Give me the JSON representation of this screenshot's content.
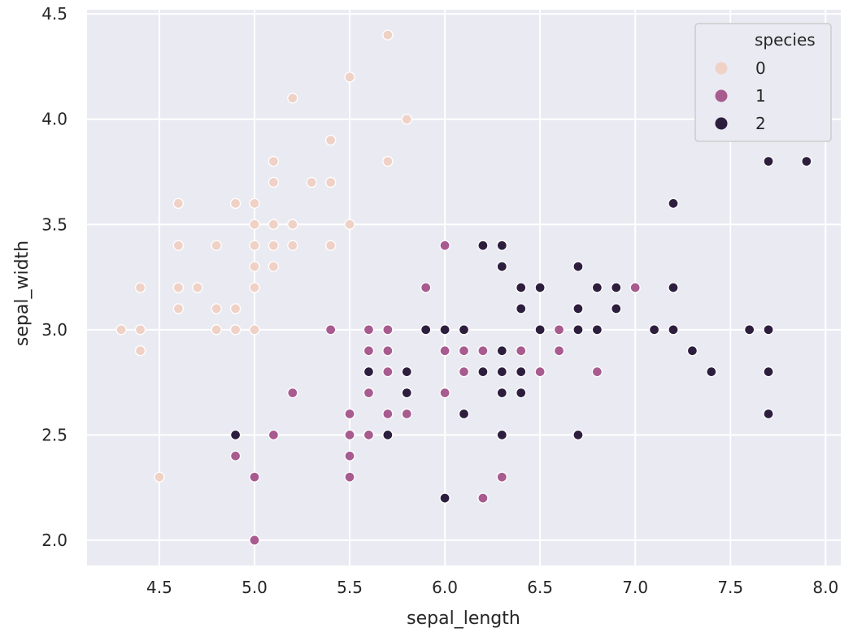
{
  "chart_data": {
    "type": "scatter",
    "xlabel": "sepal_length",
    "ylabel": "sepal_width",
    "xlim": [
      4.12,
      8.08
    ],
    "ylim": [
      1.88,
      4.52
    ],
    "xticks": [
      "4.5",
      "5.0",
      "5.5",
      "6.0",
      "6.5",
      "7.0",
      "7.5",
      "8.0"
    ],
    "yticks": [
      "2.0",
      "2.5",
      "3.0",
      "3.5",
      "4.0",
      "4.5"
    ],
    "grid": true,
    "legend": {
      "title": "species",
      "position": "top-right",
      "entries": [
        "0",
        "1",
        "2"
      ]
    },
    "colors": {
      "background": "#eaeaf2",
      "0": "#efd1c6",
      "1": "#a85b8f",
      "2": "#2d1e3e",
      "marker_edge": "#ffffff"
    },
    "series": [
      {
        "name": "0",
        "points": [
          [
            4.3,
            3.0
          ],
          [
            4.4,
            3.2
          ],
          [
            4.4,
            3.0
          ],
          [
            4.4,
            2.9
          ],
          [
            4.5,
            2.3
          ],
          [
            4.6,
            3.6
          ],
          [
            4.6,
            3.4
          ],
          [
            4.6,
            3.2
          ],
          [
            4.6,
            3.1
          ],
          [
            4.7,
            3.2
          ],
          [
            4.8,
            3.4
          ],
          [
            4.8,
            3.1
          ],
          [
            4.8,
            3.0
          ],
          [
            4.9,
            3.6
          ],
          [
            4.9,
            3.1
          ],
          [
            4.9,
            3.0
          ],
          [
            5.0,
            3.6
          ],
          [
            5.0,
            3.5
          ],
          [
            5.0,
            3.4
          ],
          [
            5.0,
            3.3
          ],
          [
            5.0,
            3.2
          ],
          [
            5.0,
            3.0
          ],
          [
            5.1,
            3.8
          ],
          [
            5.1,
            3.7
          ],
          [
            5.1,
            3.5
          ],
          [
            5.1,
            3.4
          ],
          [
            5.1,
            3.3
          ],
          [
            5.2,
            4.1
          ],
          [
            5.2,
            3.5
          ],
          [
            5.2,
            3.4
          ],
          [
            5.3,
            3.7
          ],
          [
            5.4,
            3.9
          ],
          [
            5.4,
            3.7
          ],
          [
            5.4,
            3.4
          ],
          [
            5.5,
            4.2
          ],
          [
            5.5,
            3.5
          ],
          [
            5.7,
            4.4
          ],
          [
            5.7,
            3.8
          ],
          [
            5.8,
            4.0
          ]
        ]
      },
      {
        "name": "1",
        "points": [
          [
            4.9,
            2.4
          ],
          [
            5.0,
            2.3
          ],
          [
            5.0,
            2.0
          ],
          [
            5.1,
            2.5
          ],
          [
            5.2,
            2.7
          ],
          [
            5.4,
            3.0
          ],
          [
            5.5,
            2.6
          ],
          [
            5.5,
            2.5
          ],
          [
            5.5,
            2.4
          ],
          [
            5.5,
            2.3
          ],
          [
            5.6,
            3.0
          ],
          [
            5.6,
            2.9
          ],
          [
            5.6,
            2.7
          ],
          [
            5.6,
            2.5
          ],
          [
            5.7,
            3.0
          ],
          [
            5.7,
            2.9
          ],
          [
            5.7,
            2.8
          ],
          [
            5.7,
            2.6
          ],
          [
            5.8,
            2.7
          ],
          [
            5.8,
            2.6
          ],
          [
            5.9,
            3.2
          ],
          [
            5.9,
            3.0
          ],
          [
            6.0,
            3.4
          ],
          [
            6.0,
            2.9
          ],
          [
            6.0,
            2.7
          ],
          [
            6.0,
            2.2
          ],
          [
            6.1,
            3.0
          ],
          [
            6.1,
            2.9
          ],
          [
            6.1,
            2.8
          ],
          [
            6.2,
            2.9
          ],
          [
            6.2,
            2.2
          ],
          [
            6.3,
            3.3
          ],
          [
            6.3,
            2.5
          ],
          [
            6.3,
            2.3
          ],
          [
            6.4,
            3.2
          ],
          [
            6.4,
            2.9
          ],
          [
            6.5,
            2.8
          ],
          [
            6.6,
            3.0
          ],
          [
            6.6,
            2.9
          ],
          [
            6.7,
            3.1
          ],
          [
            6.7,
            3.0
          ],
          [
            6.8,
            2.8
          ],
          [
            6.9,
            3.1
          ],
          [
            7.0,
            3.2
          ]
        ]
      },
      {
        "name": "2",
        "points": [
          [
            4.9,
            2.5
          ],
          [
            5.6,
            2.8
          ],
          [
            5.7,
            2.5
          ],
          [
            5.8,
            2.8
          ],
          [
            5.8,
            2.7
          ],
          [
            5.9,
            3.0
          ],
          [
            6.0,
            3.0
          ],
          [
            6.0,
            2.2
          ],
          [
            6.1,
            3.0
          ],
          [
            6.1,
            2.6
          ],
          [
            6.2,
            3.4
          ],
          [
            6.2,
            2.8
          ],
          [
            6.3,
            3.4
          ],
          [
            6.3,
            3.3
          ],
          [
            6.3,
            2.9
          ],
          [
            6.3,
            2.8
          ],
          [
            6.3,
            2.7
          ],
          [
            6.3,
            2.5
          ],
          [
            6.4,
            3.2
          ],
          [
            6.4,
            3.1
          ],
          [
            6.4,
            2.8
          ],
          [
            6.4,
            2.7
          ],
          [
            6.5,
            3.2
          ],
          [
            6.5,
            3.0
          ],
          [
            6.7,
            3.3
          ],
          [
            6.7,
            3.1
          ],
          [
            6.7,
            3.0
          ],
          [
            6.7,
            2.5
          ],
          [
            6.8,
            3.2
          ],
          [
            6.8,
            3.0
          ],
          [
            6.9,
            3.2
          ],
          [
            6.9,
            3.1
          ],
          [
            7.1,
            3.0
          ],
          [
            7.2,
            3.6
          ],
          [
            7.2,
            3.2
          ],
          [
            7.2,
            3.0
          ],
          [
            7.3,
            2.9
          ],
          [
            7.4,
            2.8
          ],
          [
            7.6,
            3.0
          ],
          [
            7.7,
            3.8
          ],
          [
            7.7,
            3.0
          ],
          [
            7.7,
            2.8
          ],
          [
            7.7,
            2.6
          ],
          [
            7.9,
            3.8
          ]
        ]
      }
    ]
  }
}
